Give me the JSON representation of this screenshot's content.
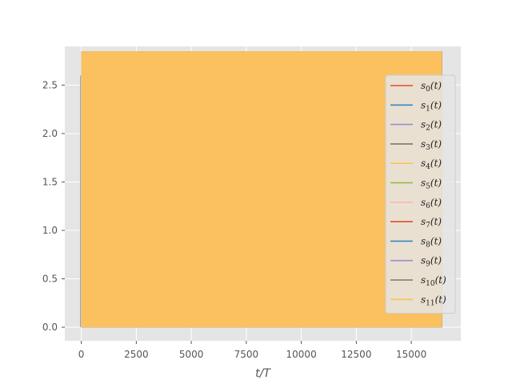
{
  "chart_data": {
    "type": "line",
    "title": "",
    "xlabel": "t/T",
    "ylabel": "",
    "xlim": [
      -750,
      17250
    ],
    "ylim": [
      -0.14,
      2.9
    ],
    "xticks": [
      0,
      2500,
      5000,
      7500,
      10000,
      12500,
      15000
    ],
    "yticks": [
      0.0,
      0.5,
      1.0,
      1.5,
      2.0,
      2.5
    ],
    "grid": true,
    "legend_position": "right",
    "x_range": [
      0,
      16400
    ],
    "series": [
      {
        "name": "s_0(t)",
        "sub": "0",
        "color": "#E24A33",
        "envelope": [
          0,
          2.85
        ]
      },
      {
        "name": "s_1(t)",
        "sub": "1",
        "color": "#348ABD",
        "envelope": [
          0,
          2.85
        ]
      },
      {
        "name": "s_2(t)",
        "sub": "2",
        "color": "#988ED5",
        "envelope": [
          0,
          2.85
        ]
      },
      {
        "name": "s_3(t)",
        "sub": "3",
        "color": "#777777",
        "envelope": [
          0,
          2.85
        ]
      },
      {
        "name": "s_4(t)",
        "sub": "4",
        "color": "#FBC15E",
        "envelope": [
          0,
          2.85
        ]
      },
      {
        "name": "s_5(t)",
        "sub": "5",
        "color": "#8EBA42",
        "envelope": [
          0,
          2.85
        ]
      },
      {
        "name": "s_6(t)",
        "sub": "6",
        "color": "#FFB5B8",
        "envelope": [
          0,
          2.85
        ]
      },
      {
        "name": "s_7(t)",
        "sub": "7",
        "color": "#E24A33",
        "envelope": [
          0,
          2.85
        ]
      },
      {
        "name": "s_8(t)",
        "sub": "8",
        "color": "#348ABD",
        "envelope": [
          0,
          2.85
        ]
      },
      {
        "name": "s_9(t)",
        "sub": "9",
        "color": "#988ED5",
        "envelope": [
          0,
          2.85
        ]
      },
      {
        "name": "s_10(t)",
        "sub": "10",
        "color": "#777777",
        "envelope": [
          0,
          2.85
        ]
      },
      {
        "name": "s_11(t)",
        "sub": "11",
        "color": "#FBC15E",
        "envelope": [
          0,
          2.85
        ]
      }
    ]
  }
}
